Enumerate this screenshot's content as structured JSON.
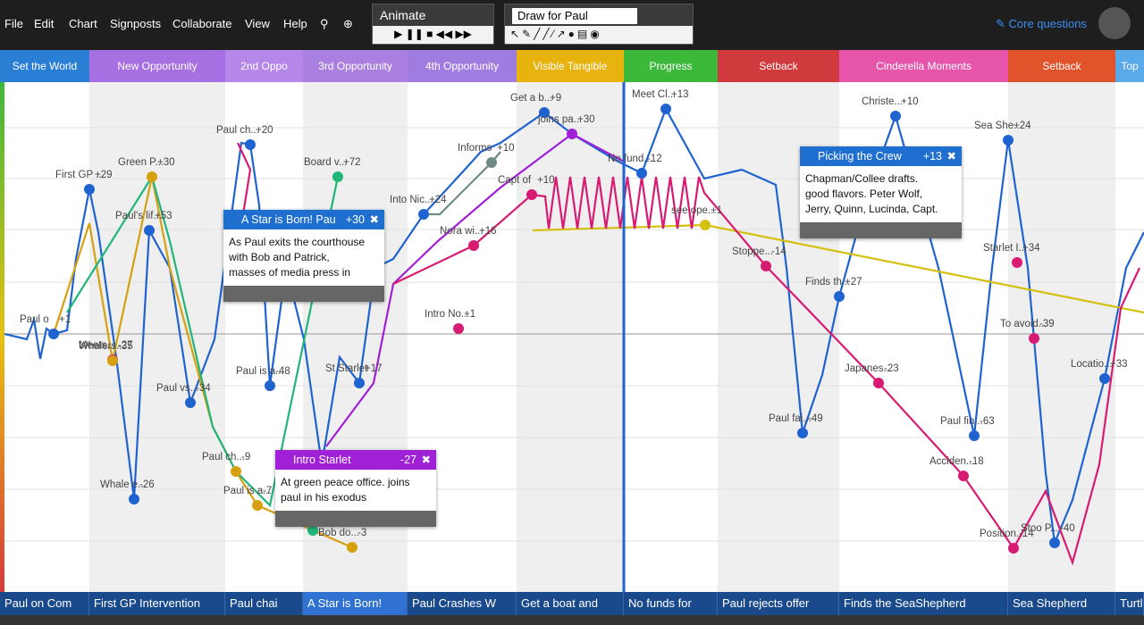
{
  "menu": [
    "File",
    "Edit",
    "Chart",
    "Signposts",
    "Collaborate",
    "View",
    "Help"
  ],
  "animate": {
    "title": "Animate"
  },
  "draw": {
    "select": "Draw for Paul"
  },
  "core_questions": "Core questions",
  "signposts": [
    {
      "label": "Set the World",
      "color": "#2a7fd4"
    },
    {
      "label": "New Opportunity",
      "color": "#a66fe2"
    },
    {
      "label": "2nd Oppo",
      "color": "#b487e8"
    },
    {
      "label": "3rd Opportunity",
      "color": "#a97fe0"
    },
    {
      "label": "4th Opportunity",
      "color": "#a07ce1"
    },
    {
      "label": "Visible Tangible",
      "color": "#e8b20f"
    },
    {
      "label": "Progress",
      "color": "#3cb93a"
    },
    {
      "label": "Setback",
      "color": "#d13a3d"
    },
    {
      "label": "Cinderella Moments",
      "color": "#e755aa"
    },
    {
      "label": "Setback",
      "color": "#e0532b"
    },
    {
      "label": "Top",
      "color": "#5aa9e8"
    }
  ],
  "scenes": [
    "Paul on Com",
    "First GP Intervention",
    "Paul chai",
    "A Star is Born!",
    "Paul Crashes W",
    "Get a boat and",
    "No funds for",
    "Paul rejects offer",
    "Finds the SeaShepherd",
    "Sea Shepherd",
    "Turtl"
  ],
  "cards": [
    {
      "title": "A Star is Born! Pau",
      "score": "+30",
      "color": "#1f6fd0",
      "body": [
        "As Paul exits the courthouse",
        "with Bob and Patrick,",
        "masses of media press in"
      ]
    },
    {
      "title": "Intro Starlet",
      "score": "-27",
      "color": "#a020d8",
      "body": [
        "At green peace office. joins",
        "paul in his exodus"
      ]
    },
    {
      "title": "Picking the Crew",
      "score": "+13",
      "color": "#1f6fd0",
      "body": [
        "Chapman/Collee drafts.",
        "good flavors. Peter Wolf,",
        "Jerry, Quinn, Lucinda, Capt."
      ]
    }
  ],
  "points": [
    {
      "label": "Paul o",
      "score": "+1",
      "color": "#1f63d0"
    },
    {
      "label": "First GP ...",
      "score": "+29",
      "color": "#1f63d0"
    },
    {
      "label": "Meets...",
      "score": "-27",
      "color": "#d81b72"
    },
    {
      "label": "Whalers...",
      "score": "-35",
      "color": "#d6a010"
    },
    {
      "label": "Green P...",
      "score": "+30",
      "color": "#d6a010"
    },
    {
      "label": "Paul's lif...",
      "score": "+53",
      "color": "#1f63d0"
    },
    {
      "label": "Paul vs...",
      "score": "-34",
      "color": "#1f63d0"
    },
    {
      "label": "Whale e...",
      "score": "-26",
      "color": "#1f63d0"
    },
    {
      "label": "Paul ch...",
      "score": "+20",
      "color": "#1f63d0"
    },
    {
      "label": "Board v...",
      "score": "+72",
      "color": "#22b57a"
    },
    {
      "label": "Paul is a...",
      "score": "-48",
      "color": "#1f63d0"
    },
    {
      "label": "Paul ch...",
      "score": "-9",
      "color": "#d6a010"
    },
    {
      "label": "Paul is a...",
      "score": "-7",
      "color": "#d6a010"
    },
    {
      "label": "Paul is t...",
      "score": "-5",
      "color": "#22b57a"
    },
    {
      "label": "Bob do...",
      "score": "-3",
      "color": "#d6a010"
    },
    {
      "label": "St Starlet",
      "score": "+17",
      "color": "#1f63d0"
    },
    {
      "label": "Informs",
      "score": "+10",
      "color": "#6f8a84"
    },
    {
      "label": "Into Nic...",
      "score": "+24",
      "color": "#1f63d0"
    },
    {
      "label": "Nora wi...",
      "score": "+16",
      "color": "#d81b72"
    },
    {
      "label": "Intro No...",
      "score": "+1",
      "color": "#d81b72"
    },
    {
      "label": "Capt of",
      "score": "+10",
      "color": "#d81b72"
    },
    {
      "label": "see ope...",
      "score": "+1",
      "color": "#d4c010"
    },
    {
      "label": "Get a b...",
      "score": "+9",
      "color": "#1f63d0"
    },
    {
      "label": "joins pa...",
      "score": "+30",
      "color": "#a020d8"
    },
    {
      "label": "Meet Cl...",
      "score": "+13",
      "color": "#1f63d0"
    },
    {
      "label": "No fund...",
      "score": "-12",
      "color": "#1f63d0"
    },
    {
      "label": "Stoppe...",
      "score": "-14",
      "color": "#d81b72"
    },
    {
      "label": "Finds th...",
      "score": "+27",
      "color": "#1f63d0"
    },
    {
      "label": "Christe...",
      "score": "+10",
      "color": "#1f63d0"
    },
    {
      "label": "Sea She...",
      "score": "+24",
      "color": "#1f63d0"
    },
    {
      "label": "Starlet I...",
      "score": "+34",
      "color": "#d81b72"
    },
    {
      "label": "To avoid...",
      "score": "-39",
      "color": "#d81b72"
    },
    {
      "label": "Japanes...",
      "score": "-23",
      "color": "#d81b72"
    },
    {
      "label": "Paul fai...",
      "score": "-49",
      "color": "#1f63d0"
    },
    {
      "label": "Paul fin...",
      "score": "-63",
      "color": "#1f63d0"
    },
    {
      "label": "Acciden...",
      "score": "-18",
      "color": "#d81b72"
    },
    {
      "label": "Position...",
      "score": "-14",
      "color": "#d81b72"
    },
    {
      "label": "Locatio...",
      "score": "+33",
      "color": "#1f63d0"
    },
    {
      "label": "Stoo P...",
      "score": "-40",
      "color": "#1f63d0"
    }
  ]
}
